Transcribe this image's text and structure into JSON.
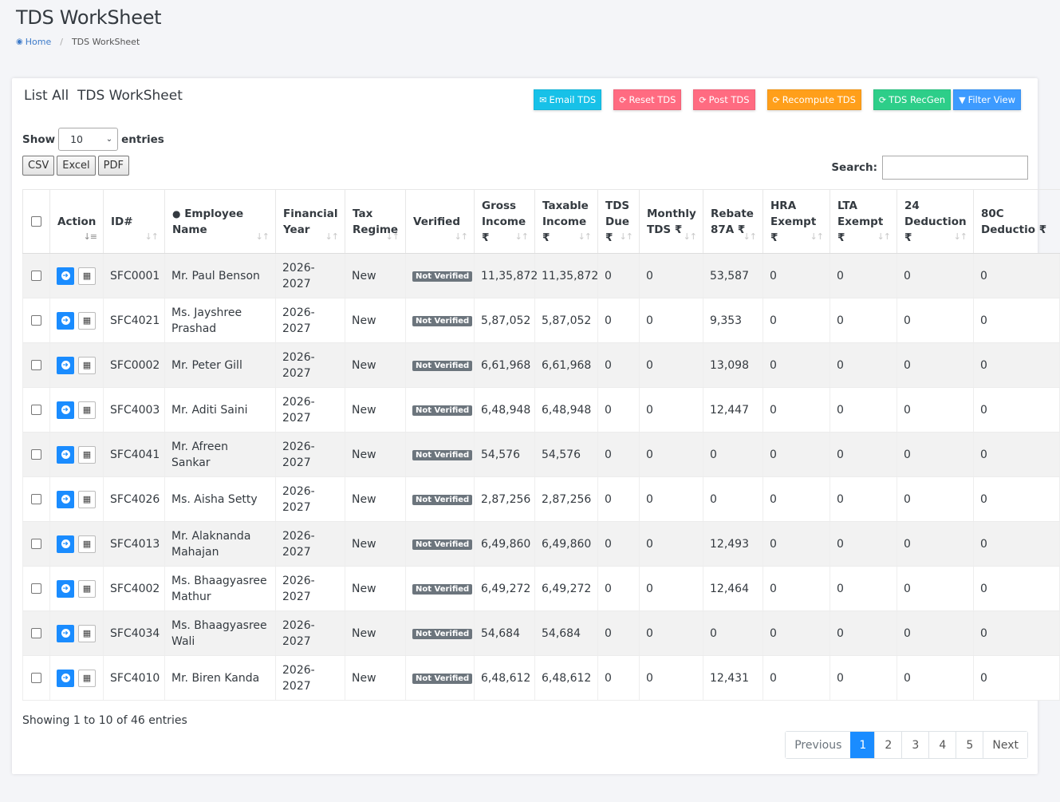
{
  "page": {
    "title": "TDS WorkSheet"
  },
  "breadcrumb": {
    "home": "Home",
    "current": "TDS WorkSheet"
  },
  "card": {
    "title": "List All  TDS WorkSheet"
  },
  "toolbar": {
    "email": "Email TDS",
    "reset": "Reset TDS",
    "post": "Post TDS",
    "recompute": "Recompute TDS",
    "regen": "TDS RecGen",
    "filter": "Filter View"
  },
  "length": {
    "show": "Show",
    "value": "10",
    "entries": "entries"
  },
  "exports": {
    "csv": "CSV",
    "excel": "Excel",
    "pdf": "PDF"
  },
  "search": {
    "label": "Search:",
    "value": ""
  },
  "columns": [
    "Action",
    "ID#",
    "Employee Name",
    "Financial Year",
    "Tax Regime",
    "Verified",
    "Gross Income ₹",
    "Taxable Income ₹",
    "TDS Due ₹",
    "Monthly TDS ₹",
    "Rebate 87A ₹",
    "HRA Exempt ₹",
    "LTA Exempt ₹",
    "24 Deduction ₹",
    "80C Deductio ₹"
  ],
  "rows": [
    {
      "id": "SFC0001",
      "name": "Mr. Paul Benson",
      "fy": "2026-2027",
      "regime": "New",
      "verified": "Not Verified",
      "gross": "11,35,872",
      "taxable": "11,35,872",
      "due": "0",
      "monthly": "0",
      "rebate": "53,587",
      "hra": "0",
      "lta": "0",
      "d24": "0",
      "c80": "0"
    },
    {
      "id": "SFC4021",
      "name": "Ms. Jayshree Prashad",
      "fy": "2026-2027",
      "regime": "New",
      "verified": "Not Verified",
      "gross": "5,87,052",
      "taxable": "5,87,052",
      "due": "0",
      "monthly": "0",
      "rebate": "9,353",
      "hra": "0",
      "lta": "0",
      "d24": "0",
      "c80": "0"
    },
    {
      "id": "SFC0002",
      "name": "Mr. Peter Gill",
      "fy": "2026-2027",
      "regime": "New",
      "verified": "Not Verified",
      "gross": "6,61,968",
      "taxable": "6,61,968",
      "due": "0",
      "monthly": "0",
      "rebate": "13,098",
      "hra": "0",
      "lta": "0",
      "d24": "0",
      "c80": "0"
    },
    {
      "id": "SFC4003",
      "name": "Mr. Aditi Saini",
      "fy": "2026-2027",
      "regime": "New",
      "verified": "Not Verified",
      "gross": "6,48,948",
      "taxable": "6,48,948",
      "due": "0",
      "monthly": "0",
      "rebate": "12,447",
      "hra": "0",
      "lta": "0",
      "d24": "0",
      "c80": "0"
    },
    {
      "id": "SFC4041",
      "name": "Mr. Afreen Sankar",
      "fy": "2026-2027",
      "regime": "New",
      "verified": "Not Verified",
      "gross": "54,576",
      "taxable": "54,576",
      "due": "0",
      "monthly": "0",
      "rebate": "0",
      "hra": "0",
      "lta": "0",
      "d24": "0",
      "c80": "0"
    },
    {
      "id": "SFC4026",
      "name": "Ms. Aisha Setty",
      "fy": "2026-2027",
      "regime": "New",
      "verified": "Not Verified",
      "gross": "2,87,256",
      "taxable": "2,87,256",
      "due": "0",
      "monthly": "0",
      "rebate": "0",
      "hra": "0",
      "lta": "0",
      "d24": "0",
      "c80": "0"
    },
    {
      "id": "SFC4013",
      "name": "Mr. Alaknanda Mahajan",
      "fy": "2026-2027",
      "regime": "New",
      "verified": "Not Verified",
      "gross": "6,49,860",
      "taxable": "6,49,860",
      "due": "0",
      "monthly": "0",
      "rebate": "12,493",
      "hra": "0",
      "lta": "0",
      "d24": "0",
      "c80": "0"
    },
    {
      "id": "SFC4002",
      "name": "Ms. Bhaagyasree Mathur",
      "fy": "2026-2027",
      "regime": "New",
      "verified": "Not Verified",
      "gross": "6,49,272",
      "taxable": "6,49,272",
      "due": "0",
      "monthly": "0",
      "rebate": "12,464",
      "hra": "0",
      "lta": "0",
      "d24": "0",
      "c80": "0"
    },
    {
      "id": "SFC4034",
      "name": "Ms. Bhaagyasree Wali",
      "fy": "2026-2027",
      "regime": "New",
      "verified": "Not Verified",
      "gross": "54,684",
      "taxable": "54,684",
      "due": "0",
      "monthly": "0",
      "rebate": "0",
      "hra": "0",
      "lta": "0",
      "d24": "0",
      "c80": "0"
    },
    {
      "id": "SFC4010",
      "name": "Mr. Biren Kanda",
      "fy": "2026-2027",
      "regime": "New",
      "verified": "Not Verified",
      "gross": "6,48,612",
      "taxable": "6,48,612",
      "due": "0",
      "monthly": "0",
      "rebate": "12,431",
      "hra": "0",
      "lta": "0",
      "d24": "0",
      "c80": "0"
    }
  ],
  "info": "Showing 1 to 10 of 46 entries",
  "pagination": {
    "previous": "Previous",
    "pages": [
      "1",
      "2",
      "3",
      "4",
      "5"
    ],
    "active": "1",
    "next": "Next"
  },
  "colors": {
    "primary": "#1a8cff",
    "info": "#17c1e8",
    "danger": "#ff6b81",
    "warning": "#ff9f1a",
    "success": "#2dce89",
    "filter": "#3d9bff",
    "badge": "#6c757d"
  },
  "icons": {
    "home": "home-icon",
    "email": "envelope-icon",
    "refresh": "refresh-icon",
    "filter": "filter-icon",
    "user": "user-icon",
    "sort": "sort-icon",
    "view": "arrow-circle-icon",
    "grid": "table-icon"
  }
}
